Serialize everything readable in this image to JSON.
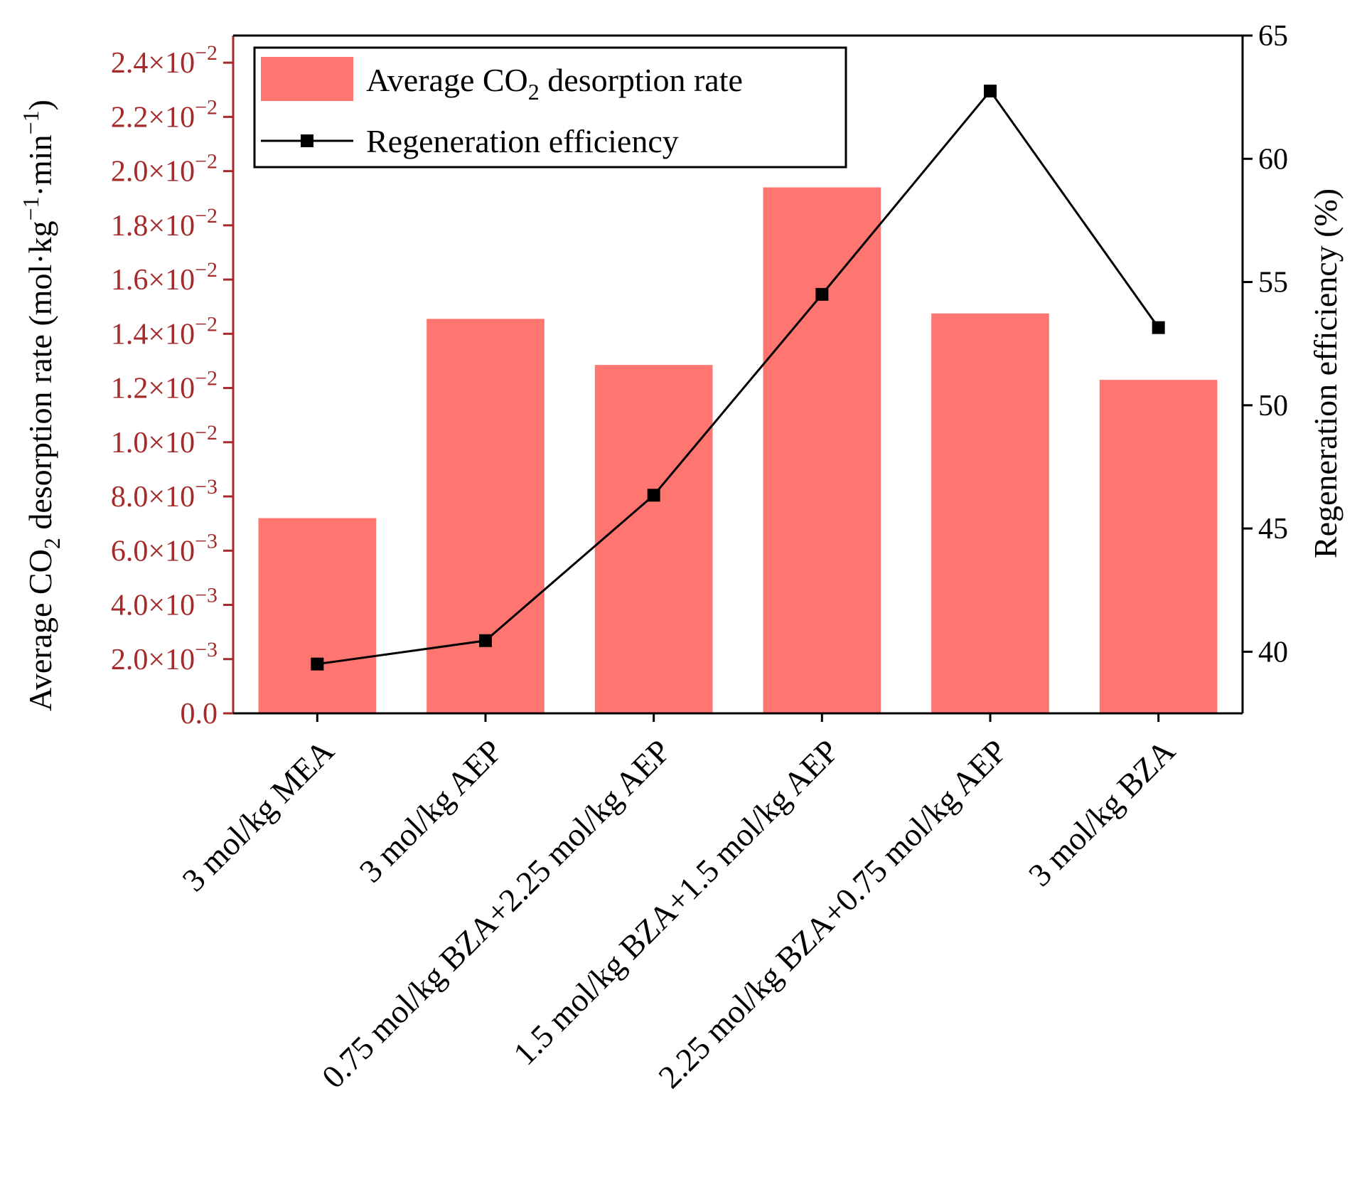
{
  "chart_data": {
    "type": "bar+line",
    "categories": [
      "3 mol/kg MEA",
      "3 mol/kg AEP",
      "0.75 mol/kg BZA+2.25 mol/kg AEP",
      "1.5 mol/kg BZA+1.5 mol/kg AEP",
      "2.25 mol/kg BZA+0.75 mol/kg AEP",
      "3 mol/kg BZA"
    ],
    "series": [
      {
        "name": "Average CO2 desorption rate",
        "type": "bar",
        "axis": "left",
        "color": "#ff7570",
        "values": [
          0.0072,
          0.01455,
          0.01285,
          0.0194,
          0.01475,
          0.0123
        ]
      },
      {
        "name": "Regeneration efficiency",
        "type": "line",
        "axis": "right",
        "color": "#000000",
        "marker": "square",
        "values": [
          39.5,
          40.45,
          46.35,
          54.5,
          62.75,
          53.15
        ]
      }
    ],
    "left_axis": {
      "label": "Average CO2 desorption rate (mol·kg−1·min−1)",
      "label_parts": {
        "a": "Average CO",
        "sub": "2",
        "b": " desorption rate (mol·kg",
        "sup1": "−1",
        "c": "·min",
        "sup2": "−1",
        "d": ")"
      },
      "ylim": [
        0,
        0.025
      ],
      "color": "#a52a2a",
      "ticks": [
        {
          "value": 0,
          "label": "0.0"
        },
        {
          "value": 0.002,
          "mant": "2.0×10",
          "exp": "−3"
        },
        {
          "value": 0.004,
          "mant": "4.0×10",
          "exp": "−3"
        },
        {
          "value": 0.006,
          "mant": "6.0×10",
          "exp": "−3"
        },
        {
          "value": 0.008,
          "mant": "8.0×10",
          "exp": "−3"
        },
        {
          "value": 0.01,
          "mant": "1.0×10",
          "exp": "−2"
        },
        {
          "value": 0.012,
          "mant": "1.2×10",
          "exp": "−2"
        },
        {
          "value": 0.014,
          "mant": "1.4×10",
          "exp": "−2"
        },
        {
          "value": 0.016,
          "mant": "1.6×10",
          "exp": "−2"
        },
        {
          "value": 0.018,
          "mant": "1.8×10",
          "exp": "−2"
        },
        {
          "value": 0.02,
          "mant": "2.0×10",
          "exp": "−2"
        },
        {
          "value": 0.022,
          "mant": "2.2×10",
          "exp": "−2"
        },
        {
          "value": 0.024,
          "mant": "2.4×10",
          "exp": "−2"
        }
      ]
    },
    "right_axis": {
      "label": "Regeneration efficiency (%)",
      "ylim": [
        37.5,
        65
      ],
      "ticks": [
        40,
        45,
        50,
        55,
        60,
        65
      ]
    },
    "legend": {
      "position": "top-left",
      "bar_label_main": "Average CO",
      "bar_label_sub": "2",
      "bar_label_rest": " desorption rate",
      "line_label": "Regeneration efficiency"
    }
  }
}
